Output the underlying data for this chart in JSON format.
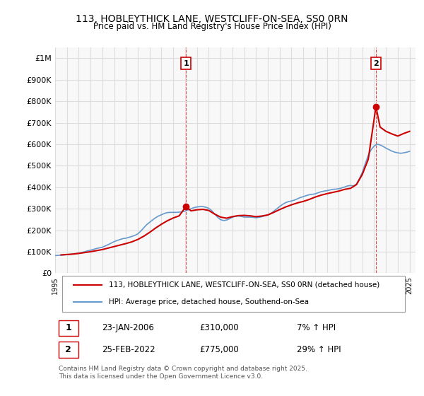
{
  "title": "113, HOBLEYTHICK LANE, WESTCLIFF-ON-SEA, SS0 0RN",
  "subtitle": "Price paid vs. HM Land Registry's House Price Index (HPI)",
  "ylabel_top": "£1M",
  "y_ticks": [
    0,
    100000,
    200000,
    300000,
    400000,
    500000,
    600000,
    700000,
    800000,
    900000,
    1000000
  ],
  "y_tick_labels": [
    "£0",
    "£100K",
    "£200K",
    "£300K",
    "£400K",
    "£500K",
    "£600K",
    "£700K",
    "£800K",
    "£900K",
    "£1M"
  ],
  "ylim": [
    0,
    1050000
  ],
  "xlim_start": 1995.0,
  "xlim_end": 2025.5,
  "sale1_date": 2006.07,
  "sale1_price": 310000,
  "sale1_label": "1",
  "sale2_date": 2022.15,
  "sale2_price": 775000,
  "sale2_label": "2",
  "line_color_property": "#cc0000",
  "line_color_hpi": "#6699cc",
  "annotation_box_color": "#cc0000",
  "grid_color": "#dddddd",
  "background_color": "#f8f8f8",
  "legend_label_property": "113, HOBLEYTHICK LANE, WESTCLIFF-ON-SEA, SS0 0RN (detached house)",
  "legend_label_hpi": "HPI: Average price, detached house, Southend-on-Sea",
  "footnote1_label": "1",
  "footnote1_date": "23-JAN-2006",
  "footnote1_price": "£310,000",
  "footnote1_hpi": "7% ↑ HPI",
  "footnote2_label": "2",
  "footnote2_date": "25-FEB-2022",
  "footnote2_price": "£775,000",
  "footnote2_hpi": "29% ↑ HPI",
  "footer_text": "Contains HM Land Registry data © Crown copyright and database right 2025.\nThis data is licensed under the Open Government Licence v3.0.",
  "hpi_data_x": [
    1995.0,
    1995.25,
    1995.5,
    1995.75,
    1996.0,
    1996.25,
    1996.5,
    1996.75,
    1997.0,
    1997.25,
    1997.5,
    1997.75,
    1998.0,
    1998.25,
    1998.5,
    1998.75,
    1999.0,
    1999.25,
    1999.5,
    1999.75,
    2000.0,
    2000.25,
    2000.5,
    2000.75,
    2001.0,
    2001.25,
    2001.5,
    2001.75,
    2002.0,
    2002.25,
    2002.5,
    2002.75,
    2003.0,
    2003.25,
    2003.5,
    2003.75,
    2004.0,
    2004.25,
    2004.5,
    2004.75,
    2005.0,
    2005.25,
    2005.5,
    2005.75,
    2006.0,
    2006.25,
    2006.5,
    2006.75,
    2007.0,
    2007.25,
    2007.5,
    2007.75,
    2008.0,
    2008.25,
    2008.5,
    2008.75,
    2009.0,
    2009.25,
    2009.5,
    2009.75,
    2010.0,
    2010.25,
    2010.5,
    2010.75,
    2011.0,
    2011.25,
    2011.5,
    2011.75,
    2012.0,
    2012.25,
    2012.5,
    2012.75,
    2013.0,
    2013.25,
    2013.5,
    2013.75,
    2014.0,
    2014.25,
    2014.5,
    2014.75,
    2015.0,
    2015.25,
    2015.5,
    2015.75,
    2016.0,
    2016.25,
    2016.5,
    2016.75,
    2017.0,
    2017.25,
    2017.5,
    2017.75,
    2018.0,
    2018.25,
    2018.5,
    2018.75,
    2019.0,
    2019.25,
    2019.5,
    2019.75,
    2020.0,
    2020.25,
    2020.5,
    2020.75,
    2021.0,
    2021.25,
    2021.5,
    2021.75,
    2022.0,
    2022.25,
    2022.5,
    2022.75,
    2023.0,
    2023.25,
    2023.5,
    2023.75,
    2024.0,
    2024.25,
    2024.5,
    2024.75,
    2025.0
  ],
  "hpi_data_y": [
    82000,
    83000,
    84000,
    85000,
    86000,
    87500,
    89000,
    91000,
    93000,
    96000,
    100000,
    104000,
    107000,
    111000,
    115000,
    118000,
    121000,
    127000,
    133000,
    140000,
    147000,
    152000,
    157000,
    161000,
    163000,
    167000,
    171000,
    176000,
    183000,
    196000,
    211000,
    226000,
    237000,
    248000,
    258000,
    266000,
    272000,
    278000,
    282000,
    283000,
    283000,
    283000,
    284000,
    286000,
    289000,
    294000,
    300000,
    305000,
    308000,
    310000,
    310000,
    307000,
    302000,
    291000,
    276000,
    261000,
    249000,
    245000,
    247000,
    253000,
    260000,
    265000,
    266000,
    264000,
    261000,
    261000,
    261000,
    260000,
    258000,
    260000,
    263000,
    267000,
    271000,
    278000,
    288000,
    299000,
    310000,
    320000,
    328000,
    333000,
    336000,
    340000,
    346000,
    352000,
    356000,
    361000,
    365000,
    367000,
    369000,
    374000,
    379000,
    382000,
    384000,
    387000,
    390000,
    391000,
    393000,
    397000,
    401000,
    406000,
    408000,
    406000,
    415000,
    440000,
    470000,
    510000,
    548000,
    575000,
    592000,
    600000,
    597000,
    590000,
    582000,
    575000,
    568000,
    563000,
    560000,
    558000,
    560000,
    563000,
    567000
  ],
  "property_data_x": [
    1995.5,
    1996.0,
    1996.5,
    1997.0,
    1997.5,
    1998.0,
    1998.5,
    1999.0,
    1999.5,
    2000.0,
    2000.5,
    2001.0,
    2001.5,
    2002.0,
    2002.5,
    2003.0,
    2003.5,
    2004.0,
    2004.5,
    2005.0,
    2005.5,
    2006.07,
    2006.5,
    2007.0,
    2007.5,
    2008.0,
    2008.5,
    2009.0,
    2009.5,
    2010.0,
    2010.5,
    2011.0,
    2011.5,
    2012.0,
    2012.5,
    2013.0,
    2013.5,
    2014.0,
    2014.5,
    2015.0,
    2015.5,
    2016.0,
    2016.5,
    2017.0,
    2017.5,
    2018.0,
    2018.5,
    2019.0,
    2019.5,
    2020.0,
    2020.5,
    2021.0,
    2021.5,
    2022.15,
    2022.5,
    2023.0,
    2023.5,
    2024.0,
    2024.5,
    2025.0
  ],
  "property_data_y": [
    85000,
    87000,
    89000,
    92000,
    96000,
    100000,
    105000,
    110000,
    117000,
    124000,
    131000,
    138000,
    146000,
    157000,
    172000,
    190000,
    210000,
    228000,
    244000,
    257000,
    267000,
    310000,
    290000,
    295000,
    297000,
    292000,
    275000,
    261000,
    256000,
    263000,
    268000,
    269000,
    267000,
    263000,
    266000,
    271000,
    283000,
    296000,
    308000,
    318000,
    327000,
    334000,
    343000,
    354000,
    363000,
    370000,
    376000,
    382000,
    390000,
    395000,
    412000,
    460000,
    530000,
    775000,
    680000,
    660000,
    648000,
    638000,
    650000,
    660000
  ]
}
